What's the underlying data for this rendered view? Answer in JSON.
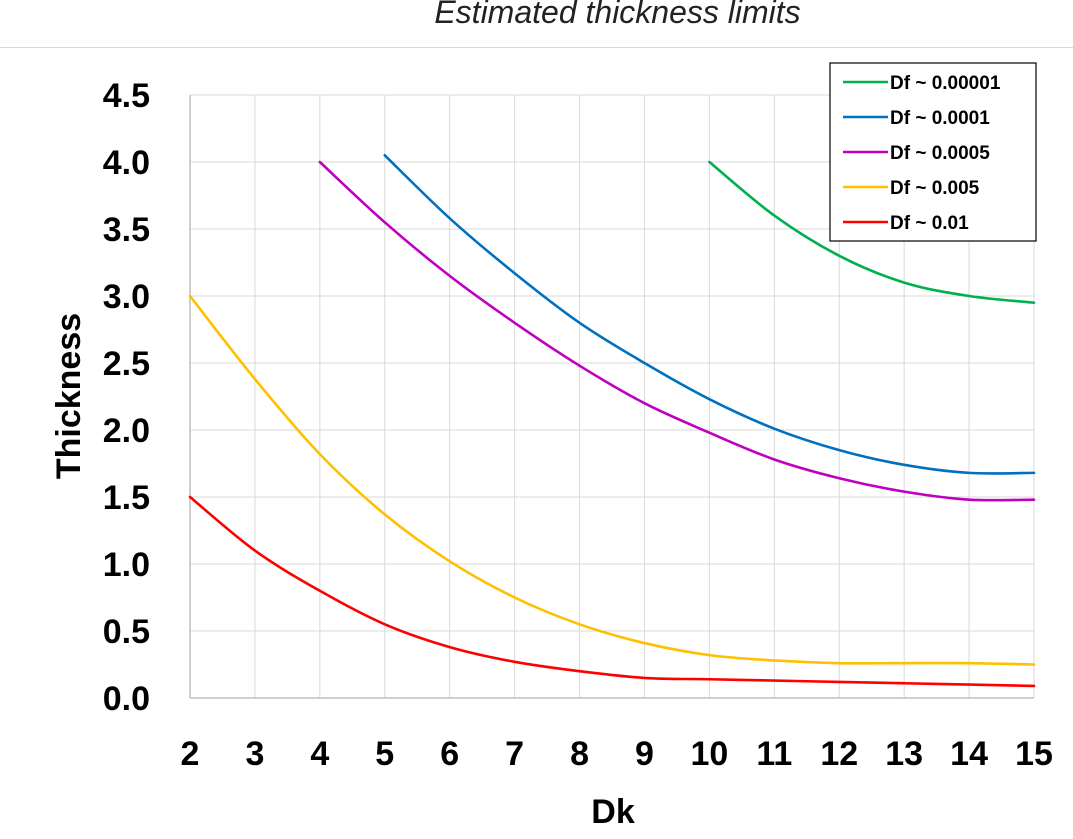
{
  "chart_data": {
    "type": "line",
    "title": "Estimated thickness limits",
    "xlabel": "Dk",
    "ylabel": "Thickness",
    "xlim": [
      2,
      15
    ],
    "ylim": [
      0,
      4.5
    ],
    "x_ticks": [
      "2",
      "3",
      "4",
      "5",
      "6",
      "7",
      "8",
      "9",
      "10",
      "11",
      "12",
      "13",
      "14",
      "15"
    ],
    "y_ticks": [
      "0.0",
      "0.5",
      "1.0",
      "1.5",
      "2.0",
      "2.5",
      "3.0",
      "3.5",
      "4.0",
      "4.5"
    ],
    "grid": true,
    "legend_position": "top-right",
    "series": [
      {
        "name": "Df ~ 0.00001",
        "color": "#00b050",
        "x": [
          10,
          11,
          12,
          13,
          14,
          15
        ],
        "y": [
          4.0,
          3.6,
          3.3,
          3.1,
          3.0,
          2.95
        ]
      },
      {
        "name": "Df ~ 0.0001",
        "color": "#0070c0",
        "x": [
          5,
          6,
          7,
          8,
          9,
          10,
          11,
          12,
          13,
          14,
          15
        ],
        "y": [
          4.05,
          3.58,
          3.17,
          2.8,
          2.5,
          2.23,
          2.01,
          1.85,
          1.74,
          1.68,
          1.68
        ]
      },
      {
        "name": "Df ~ 0.0005",
        "color": "#c000c0",
        "x": [
          4,
          5,
          6,
          7,
          8,
          9,
          10,
          11,
          12,
          13,
          14,
          15
        ],
        "y": [
          4.0,
          3.55,
          3.15,
          2.8,
          2.48,
          2.2,
          1.98,
          1.78,
          1.64,
          1.54,
          1.48,
          1.48
        ]
      },
      {
        "name": "Df ~ 0.005",
        "color": "#ffc000",
        "x": [
          2,
          3,
          4,
          5,
          6,
          7,
          8,
          9,
          10,
          11,
          12,
          13,
          14,
          15
        ],
        "y": [
          3.0,
          2.38,
          1.82,
          1.37,
          1.02,
          0.75,
          0.55,
          0.41,
          0.32,
          0.28,
          0.26,
          0.26,
          0.26,
          0.25
        ]
      },
      {
        "name": "Df ~ 0.01",
        "color": "#ff0000",
        "x": [
          2,
          3,
          4,
          5,
          6,
          7,
          8,
          9,
          10,
          11,
          12,
          13,
          14,
          15
        ],
        "y": [
          1.5,
          1.1,
          0.8,
          0.55,
          0.38,
          0.27,
          0.2,
          0.15,
          0.14,
          0.13,
          0.12,
          0.11,
          0.1,
          0.09
        ]
      }
    ]
  }
}
